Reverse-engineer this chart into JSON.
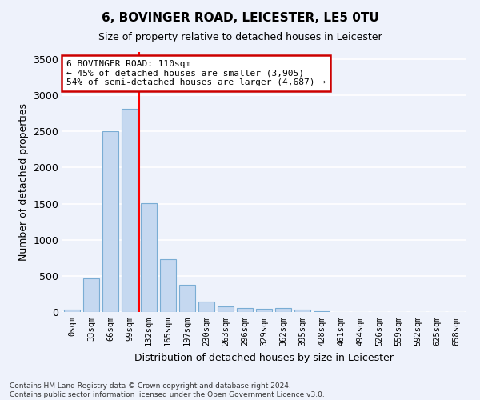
{
  "title": "6, BOVINGER ROAD, LEICESTER, LE5 0TU",
  "subtitle": "Size of property relative to detached houses in Leicester",
  "xlabel": "Distribution of detached houses by size in Leicester",
  "ylabel": "Number of detached properties",
  "bar_color": "#c5d8f0",
  "bar_edge_color": "#7aadd4",
  "bins": [
    "0sqm",
    "33sqm",
    "66sqm",
    "99sqm",
    "132sqm",
    "165sqm",
    "197sqm",
    "230sqm",
    "263sqm",
    "296sqm",
    "329sqm",
    "362sqm",
    "395sqm",
    "428sqm",
    "461sqm",
    "494sqm",
    "526sqm",
    "559sqm",
    "592sqm",
    "625sqm",
    "658sqm"
  ],
  "values": [
    30,
    470,
    2500,
    2810,
    1510,
    730,
    380,
    140,
    80,
    50,
    40,
    50,
    30,
    10,
    5,
    3,
    2,
    1,
    1,
    0,
    0
  ],
  "ylim": [
    0,
    3600
  ],
  "yticks": [
    0,
    500,
    1000,
    1500,
    2000,
    2500,
    3000,
    3500
  ],
  "property_line_x": 3.5,
  "annotation_text": "6 BOVINGER ROAD: 110sqm\n← 45% of detached houses are smaller (3,905)\n54% of semi-detached houses are larger (4,687) →",
  "annotation_box_color": "#ffffff",
  "annotation_border_color": "#cc0000",
  "footer_line1": "Contains HM Land Registry data © Crown copyright and database right 2024.",
  "footer_line2": "Contains public sector information licensed under the Open Government Licence v3.0.",
  "background_color": "#eef2fb",
  "grid_color": "#ffffff"
}
